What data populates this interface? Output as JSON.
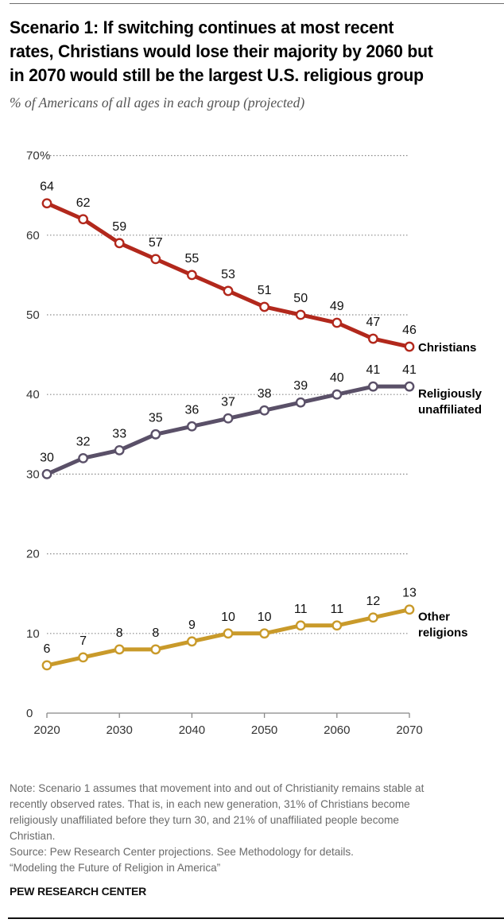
{
  "header": {
    "title_lines": [
      "Scenario 1: If switching continues at most recent",
      "rates, Christians would lose their majority by 2060 but",
      "in 2070 would still be the largest U.S. religious group"
    ],
    "subtitle": "% of Americans of all ages in each group (projected)"
  },
  "chart_data": {
    "type": "line",
    "title": "Scenario 1: If switching continues at most recent rates, Christians would lose their majority by 2060 but in 2070 would still be the largest U.S. religious group",
    "subtitle": "% of Americans of all ages in each group (projected)",
    "xlabel": "",
    "ylabel": "% of Americans",
    "x": [
      2020,
      2025,
      2030,
      2035,
      2040,
      2045,
      2050,
      2055,
      2060,
      2065,
      2070
    ],
    "xticks": [
      "2020",
      "2030",
      "2040",
      "2050",
      "2060",
      "2070"
    ],
    "yticks": [
      "0",
      "10",
      "20",
      "30",
      "40",
      "50",
      "60",
      "70"
    ],
    "ytick_suffix_top": "%",
    "ylim": [
      0,
      70
    ],
    "xlim": [
      2020,
      2070
    ],
    "grid": "horizontal-dotted",
    "legend": "inline-right",
    "series": [
      {
        "name": "Christians",
        "color": "#b2281c",
        "values": [
          64,
          62,
          59,
          57,
          55,
          53,
          51,
          50,
          49,
          47,
          46
        ]
      },
      {
        "name": "Religiously unaffiliated",
        "label_lines": [
          "Religiously",
          "unaffiliated"
        ],
        "color": "#5a5068",
        "values": [
          30,
          32,
          33,
          35,
          36,
          37,
          38,
          39,
          40,
          41,
          41
        ]
      },
      {
        "name": "Other religions",
        "label_lines": [
          "Other",
          "religions"
        ],
        "color": "#c99a2a",
        "values": [
          6,
          7,
          8,
          8,
          9,
          10,
          10,
          11,
          11,
          12,
          13
        ]
      }
    ]
  },
  "footer": {
    "note_lines": [
      "Note: Scenario 1 assumes that movement into and out of Christianity remains stable at",
      "recently observed rates. That is, in each new generation, 31% of Christians become",
      "religiously unaffiliated before they turn 30, and 21% of unaffiliated people become",
      "Christian.",
      "Source: Pew Research Center projections. See Methodology for details.",
      "“Modeling the Future of Religion in America”"
    ],
    "brand": "PEW RESEARCH CENTER"
  }
}
